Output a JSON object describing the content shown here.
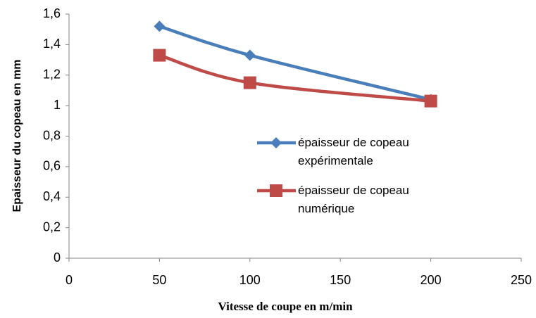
{
  "chart_data": {
    "type": "line",
    "x_label": "Vitesse  de coupe en m/min",
    "y_label": "Epaisseur du copeau en mm",
    "series": [
      {
        "name": "épaisseur de copeau expérimentale",
        "color": "#4a7ebb",
        "marker": "diamond",
        "x": [
          50,
          100,
          200
        ],
        "values": [
          1.52,
          1.33,
          1.04
        ]
      },
      {
        "name": "épaisseur  de copeau numérique",
        "color": "#be4b48",
        "marker": "square",
        "x": [
          50,
          100,
          200
        ],
        "values": [
          1.33,
          1.15,
          1.03
        ]
      }
    ],
    "xlim": [
      0,
      250
    ],
    "xticks": [
      0,
      50,
      100,
      150,
      200,
      250
    ],
    "ylim": [
      0,
      1.6
    ],
    "yticks": [
      0,
      {
        "value": 0.2,
        "label": "0,2"
      },
      {
        "value": 0.4,
        "label": "0,4"
      },
      {
        "value": 0.6,
        "label": "0,6"
      },
      {
        "value": 0.8,
        "label": "0,8"
      },
      1,
      {
        "value": 1.2,
        "label": "1,2"
      },
      {
        "value": 1.4,
        "label": "1,4"
      },
      {
        "value": 1.6,
        "label": "1,6"
      }
    ],
    "grid": false
  }
}
